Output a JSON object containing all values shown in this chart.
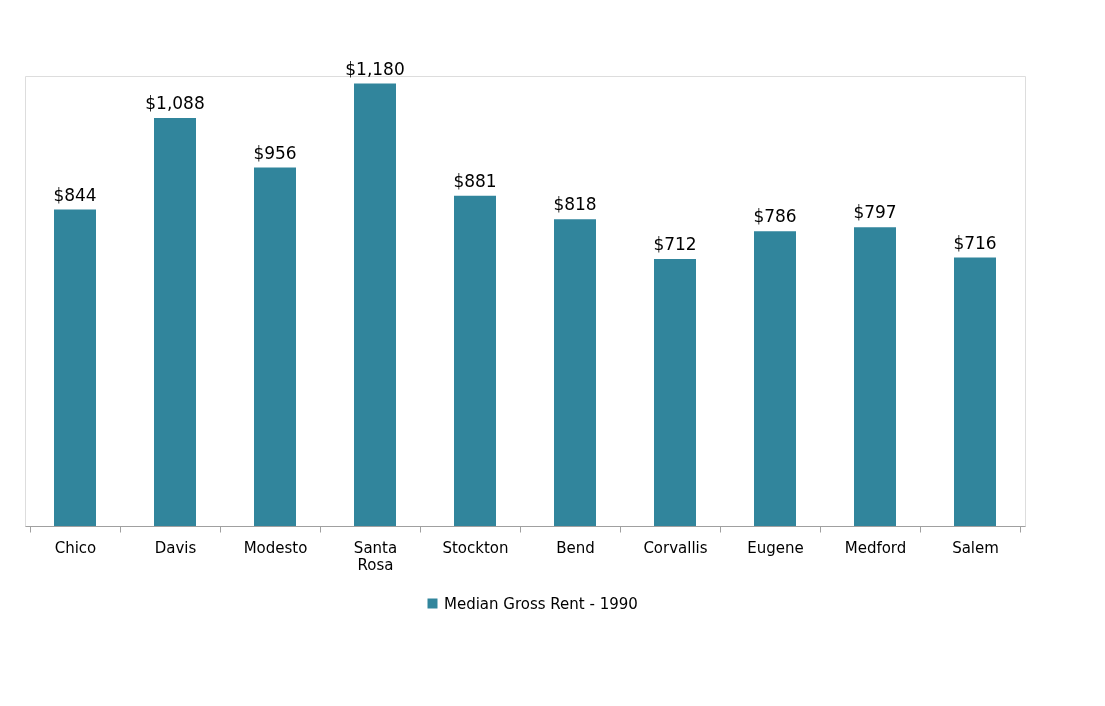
{
  "chart_data": {
    "type": "bar",
    "categories": [
      "Chico",
      "Davis",
      "Modesto",
      "Santa Rosa",
      "Stockton",
      "Bend",
      "Corvallis",
      "Eugene",
      "Medford",
      "Salem"
    ],
    "series": [
      {
        "name": "Median Gross Rent - 1990",
        "color": "#31859c",
        "values": [
          844,
          1088,
          956,
          1180,
          881,
          818,
          712,
          786,
          797,
          716
        ],
        "value_labels": [
          "$844",
          "$1,088",
          "$956",
          "$1,180",
          "$881",
          "$818",
          "$712",
          "$786",
          "$797",
          "$716"
        ]
      }
    ],
    "legend": "bottom",
    "grid": false
  }
}
